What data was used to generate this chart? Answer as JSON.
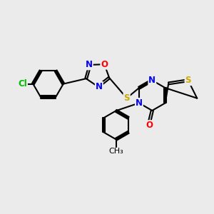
{
  "background_color": "#ebebeb",
  "bond_color": "#000000",
  "bond_width": 1.5,
  "atom_colors": {
    "C": "#000000",
    "N": "#0000ff",
    "O": "#ff0000",
    "S": "#ccaa00",
    "Cl": "#00bb00"
  },
  "font_size": 8.5,
  "fig_size": [
    3.0,
    3.0
  ],
  "dpi": 100,
  "xlim": [
    0,
    10
  ],
  "ylim": [
    0,
    10
  ]
}
